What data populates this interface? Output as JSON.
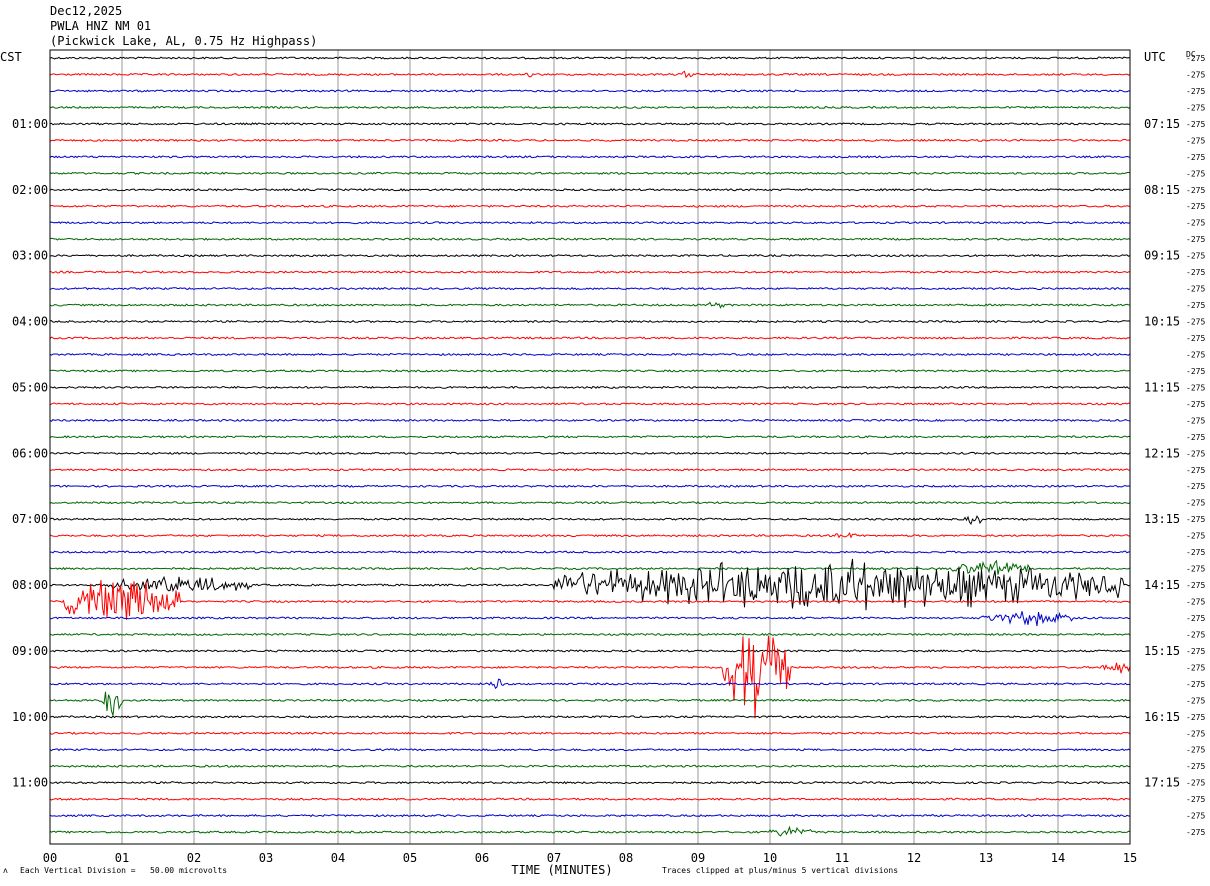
{
  "header": {
    "date": "Dec12,2025",
    "station": "PWLA HNZ NM 01",
    "location": "(Pickwick Lake, AL, 0.75 Hz Highpass)"
  },
  "axes": {
    "left_tz": "CST",
    "right_tz": "UTC",
    "dc_label": "DC",
    "xlabel": "TIME (MINUTES)"
  },
  "footer": {
    "scale_note": "Each Vertical Division =   50.00 microvolts",
    "clip_note": "Traces clipped at plus/minus 5 vertical divisions"
  },
  "chart_data": {
    "type": "line",
    "title": "PWLA HNZ NM 01",
    "xlabel": "TIME (MINUTES)",
    "x_ticks": [
      "00",
      "01",
      "02",
      "03",
      "04",
      "05",
      "06",
      "07",
      "08",
      "09",
      "10",
      "11",
      "12",
      "13",
      "14",
      "15"
    ],
    "xlim": [
      0,
      15
    ],
    "grid": true,
    "trace_count": 48,
    "trace_colors": [
      "#000000",
      "#ff0000",
      "#0000cc",
      "#006600"
    ],
    "dc_offset_label": "-275",
    "left_hour_labels": [
      "01:00",
      "02:00",
      "03:00",
      "04:00",
      "05:00",
      "06:00",
      "07:00",
      "08:00",
      "09:00",
      "10:00",
      "11:00"
    ],
    "right_hour_labels": [
      "07:15",
      "08:15",
      "09:15",
      "10:15",
      "11:15",
      "12:15",
      "13:15",
      "14:15",
      "15:15",
      "16:15",
      "17:15"
    ],
    "events": [
      {
        "trace": 1,
        "start_min": 6.6,
        "end_min": 6.75,
        "amp": 0.25
      },
      {
        "trace": 1,
        "start_min": 8.7,
        "end_min": 9.0,
        "amp": 0.2
      },
      {
        "trace": 15,
        "start_min": 9.1,
        "end_min": 9.4,
        "amp": 0.2
      },
      {
        "trace": 28,
        "start_min": 12.7,
        "end_min": 13.0,
        "amp": 0.3
      },
      {
        "trace": 29,
        "start_min": 10.9,
        "end_min": 11.2,
        "amp": 0.2
      },
      {
        "trace": 32,
        "start_min": 0.8,
        "end_min": 2.8,
        "amp": 0.5
      },
      {
        "trace": 32,
        "start_min": 7.0,
        "end_min": 14.9,
        "amp": 1.4
      },
      {
        "trace": 31,
        "start_min": 12.5,
        "end_min": 13.6,
        "amp": 0.4
      },
      {
        "trace": 33,
        "start_min": 0.2,
        "end_min": 1.8,
        "amp": 1.2
      },
      {
        "trace": 34,
        "start_min": 12.9,
        "end_min": 14.2,
        "amp": 0.4
      },
      {
        "trace": 37,
        "start_min": 9.35,
        "end_min": 10.3,
        "amp": 2.5
      },
      {
        "trace": 37,
        "start_min": 14.6,
        "end_min": 15.0,
        "amp": 0.4
      },
      {
        "trace": 38,
        "start_min": 6.1,
        "end_min": 6.3,
        "amp": 0.4
      },
      {
        "trace": 39,
        "start_min": 0.7,
        "end_min": 1.0,
        "amp": 1.2
      },
      {
        "trace": 47,
        "start_min": 10.0,
        "end_min": 10.6,
        "amp": 0.3
      }
    ]
  }
}
